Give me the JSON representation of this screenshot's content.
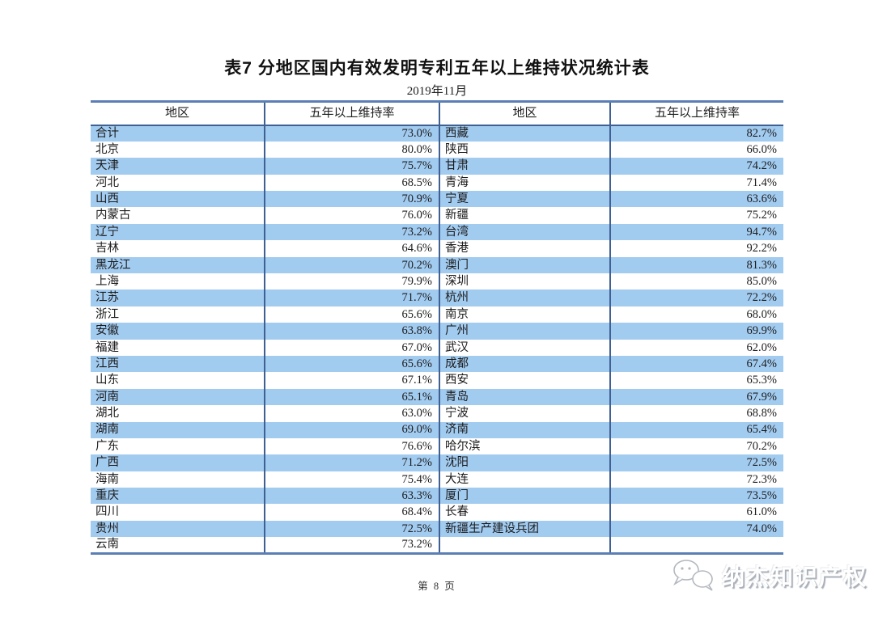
{
  "document": {
    "title": "表7 分地区国内有效发明专利五年以上维持状况统计表",
    "subtitle": "2019年11月",
    "page_footer": "第 8 页",
    "watermark_text": "纳杰知识产权"
  },
  "table": {
    "headers": [
      "地区",
      "五年以上维持率",
      "地区",
      "五年以上维持率"
    ],
    "rows": [
      [
        "合计",
        "73.0%",
        "西藏",
        "82.7%"
      ],
      [
        "北京",
        "80.0%",
        "陕西",
        "66.0%"
      ],
      [
        "天津",
        "75.7%",
        "甘肃",
        "74.2%"
      ],
      [
        "河北",
        "68.5%",
        "青海",
        "71.4%"
      ],
      [
        "山西",
        "70.9%",
        "宁夏",
        "63.6%"
      ],
      [
        "内蒙古",
        "76.0%",
        "新疆",
        "75.2%"
      ],
      [
        "辽宁",
        "73.2%",
        "台湾",
        "94.7%"
      ],
      [
        "吉林",
        "64.6%",
        "香港",
        "92.2%"
      ],
      [
        "黑龙江",
        "70.2%",
        "澳门",
        "81.3%"
      ],
      [
        "上海",
        "79.9%",
        "深圳",
        "85.0%"
      ],
      [
        "江苏",
        "71.7%",
        "杭州",
        "72.2%"
      ],
      [
        "浙江",
        "65.6%",
        "南京",
        "68.0%"
      ],
      [
        "安徽",
        "63.8%",
        "广州",
        "69.9%"
      ],
      [
        "福建",
        "67.0%",
        "武汉",
        "62.0%"
      ],
      [
        "江西",
        "65.6%",
        "成都",
        "67.4%"
      ],
      [
        "山东",
        "67.1%",
        "西安",
        "65.3%"
      ],
      [
        "河南",
        "65.1%",
        "青岛",
        "67.9%"
      ],
      [
        "湖北",
        "63.0%",
        "宁波",
        "68.8%"
      ],
      [
        "湖南",
        "69.0%",
        "济南",
        "65.4%"
      ],
      [
        "广东",
        "76.6%",
        "哈尔滨",
        "70.2%"
      ],
      [
        "广西",
        "71.2%",
        "沈阳",
        "72.5%"
      ],
      [
        "海南",
        "75.4%",
        "大连",
        "72.3%"
      ],
      [
        "重庆",
        "63.3%",
        "厦门",
        "73.5%"
      ],
      [
        "四川",
        "68.4%",
        "长春",
        "61.0%"
      ],
      [
        "贵州",
        "72.5%",
        "新疆生产建设兵团",
        "74.0%"
      ],
      [
        "云南",
        "73.2%",
        "",
        ""
      ]
    ]
  },
  "colors": {
    "row_stripe_blue": "#a2cbf0",
    "divider_dark_blue": "#3e6093",
    "outer_border_blue": "#5b7fb5"
  }
}
